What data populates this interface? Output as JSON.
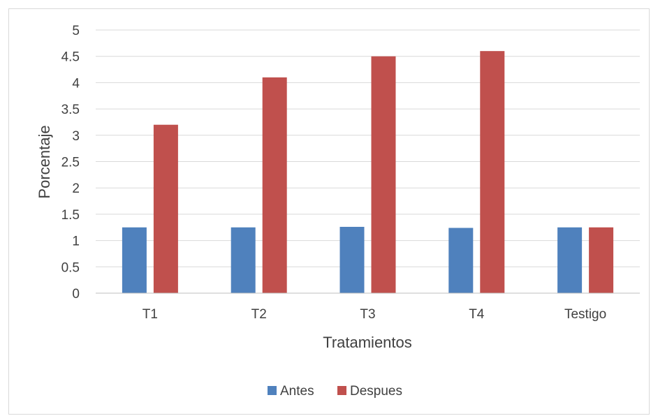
{
  "chart_data": {
    "type": "bar",
    "categories": [
      "T1",
      "T2",
      "T3",
      "T4",
      "Testigo"
    ],
    "series": [
      {
        "name": "Antes",
        "values": [
          1.25,
          1.25,
          1.26,
          1.24,
          1.25
        ],
        "color": "#4F81BD"
      },
      {
        "name": "Despues",
        "values": [
          3.2,
          4.1,
          4.5,
          4.6,
          1.25
        ],
        "color": "#C0504D"
      }
    ],
    "title": "",
    "xlabel": "Tratamientos",
    "ylabel": "Porcentaje",
    "ylim": [
      0,
      5
    ],
    "yticks": [
      "0",
      "0.5",
      "1",
      "1.5",
      "2",
      "2.5",
      "3",
      "3.5",
      "4",
      "4.5",
      "5"
    ],
    "grid": true,
    "legend": "bottom",
    "gridColor": "#d9d9d9",
    "axisColor": "#bfbfbf"
  }
}
